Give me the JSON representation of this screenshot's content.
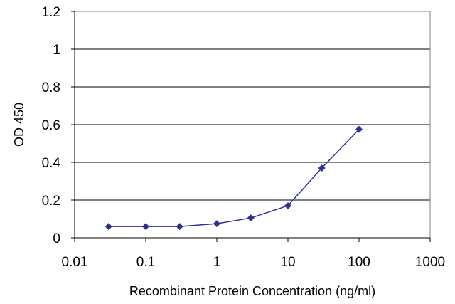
{
  "chart_data": {
    "type": "line",
    "title": "",
    "xlabel": "Recombinant Protein Concentration (ng/ml)",
    "ylabel": "OD 450",
    "xscale": "log",
    "xlim": [
      0.01,
      1000
    ],
    "ylim": [
      0,
      1.2
    ],
    "grid": "horizontal",
    "legend": "none",
    "x_ticks": [
      {
        "value": 0.01,
        "label": "0.01"
      },
      {
        "value": 0.1,
        "label": "0.1"
      },
      {
        "value": 1,
        "label": "1"
      },
      {
        "value": 10,
        "label": "10"
      },
      {
        "value": 100,
        "label": "100"
      },
      {
        "value": 1000,
        "label": "1000"
      }
    ],
    "y_ticks": [
      {
        "value": 0,
        "label": "0"
      },
      {
        "value": 0.2,
        "label": "0.2"
      },
      {
        "value": 0.4,
        "label": "0.4"
      },
      {
        "value": 0.6,
        "label": "0.6"
      },
      {
        "value": 0.8,
        "label": "0.8"
      },
      {
        "value": 1,
        "label": "1"
      },
      {
        "value": 1.2,
        "label": "1.2"
      }
    ],
    "series": [
      {
        "color": "#2e3192",
        "x": [
          0.03,
          0.1,
          0.3,
          1,
          3,
          10,
          30,
          100
        ],
        "y": [
          0.06,
          0.06,
          0.06,
          0.075,
          0.105,
          0.17,
          0.37,
          0.575
        ]
      }
    ]
  }
}
